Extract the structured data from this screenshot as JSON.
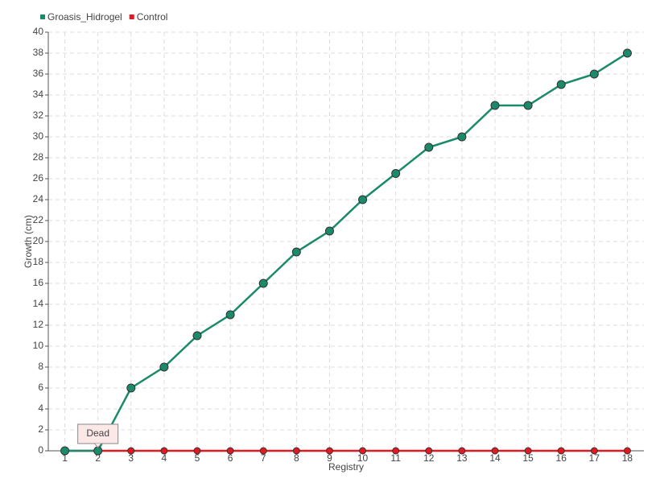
{
  "chart_data": {
    "type": "line",
    "x_label": "Registry",
    "y_label": "Growth (cm)",
    "categories": [
      "1",
      "2",
      "3",
      "4",
      "5",
      "6",
      "7",
      "8",
      "9",
      "10",
      "11",
      "12",
      "13",
      "14",
      "15",
      "16",
      "17",
      "18"
    ],
    "series": [
      {
        "name": "Groasis_Hidrogel",
        "color": "#1a8a6a",
        "values": [
          0,
          0,
          6,
          8,
          11,
          13,
          16,
          19,
          21,
          24,
          26.5,
          29,
          30,
          33,
          33,
          35,
          36,
          38
        ]
      },
      {
        "name": "Control",
        "color": "#e01a22",
        "values": [
          0,
          0,
          0,
          0,
          0,
          0,
          0,
          0,
          0,
          0,
          0,
          0,
          0,
          0,
          0,
          0,
          0,
          0
        ]
      }
    ],
    "annotations": [
      {
        "text": "Dead",
        "x": "2"
      }
    ],
    "ylim": [
      0,
      40
    ],
    "yticks": [
      0,
      2,
      4,
      6,
      8,
      10,
      12,
      14,
      16,
      18,
      20,
      22,
      24,
      26,
      28,
      30,
      32,
      34,
      36,
      38,
      40
    ],
    "grid": true,
    "legend": "top-left"
  }
}
